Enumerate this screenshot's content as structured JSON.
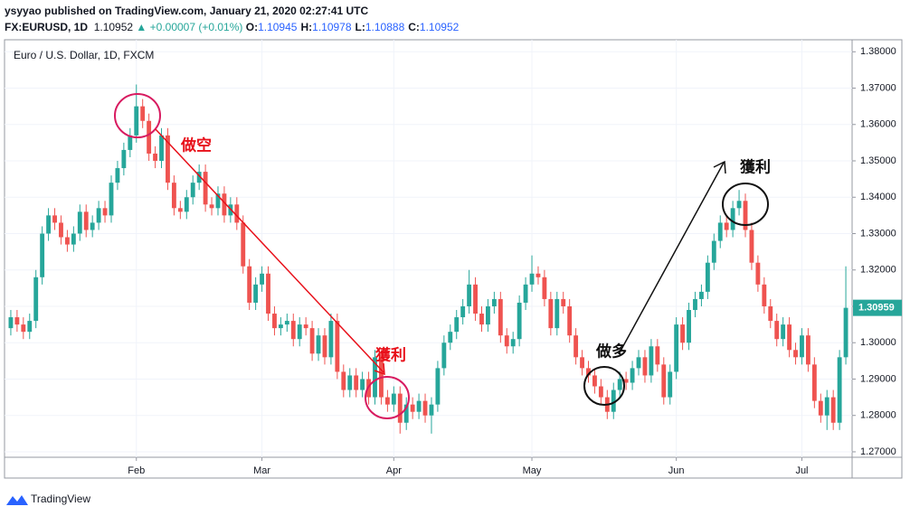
{
  "header": {
    "line1": "ysyyao published on TradingView.com, January 21, 2020 02:27:41 UTC",
    "symbol": "FX:EURUSD, 1D",
    "price": "1.10952",
    "change": "▲ +0.00007 (+0.01%)",
    "ohlc": [
      {
        "label": "O:",
        "value": "1.10945"
      },
      {
        "label": "H:",
        "value": "1.10978"
      },
      {
        "label": "L:",
        "value": "1.10888"
      },
      {
        "label": "C:",
        "value": "1.10952"
      }
    ]
  },
  "footer": {
    "brand": "TradingView"
  },
  "annotations": [
    {
      "text": "做空",
      "color": "#e8101a"
    },
    {
      "text": "獲利",
      "color": "#e8101a"
    },
    {
      "text": "做多",
      "color": "#111111"
    },
    {
      "text": "獲利",
      "color": "#111111"
    }
  ],
  "chart_data": {
    "type": "candlestick",
    "title": "Euro / U.S. Dollar, 1D, FXCM",
    "up_color": "#26a69a",
    "down_color": "#ef5350",
    "grid": true,
    "ylim": [
      1.2685,
      1.3833
    ],
    "yticks": [
      {
        "value": 1.27,
        "label": "1.27000"
      },
      {
        "value": 1.28,
        "label": "1.28000"
      },
      {
        "value": 1.29,
        "label": "1.29000"
      },
      {
        "value": 1.3,
        "label": "1.30000"
      },
      {
        "value": 1.31,
        "label": "1.31000"
      },
      {
        "value": 1.32,
        "label": "1.32000"
      },
      {
        "value": 1.33,
        "label": "1.33000"
      },
      {
        "value": 1.34,
        "label": "1.34000"
      },
      {
        "value": 1.35,
        "label": "1.35000"
      },
      {
        "value": 1.36,
        "label": "1.36000"
      },
      {
        "value": 1.37,
        "label": "1.37000"
      },
      {
        "value": 1.38,
        "label": "1.38000"
      }
    ],
    "xlim": [
      -1,
      134
    ],
    "xticks": [
      {
        "value": 20,
        "label": "Feb"
      },
      {
        "value": 40,
        "label": "Mar"
      },
      {
        "value": 61,
        "label": "Apr"
      },
      {
        "value": 83,
        "label": "May"
      },
      {
        "value": 106,
        "label": "Jun"
      },
      {
        "value": 126,
        "label": "Jul"
      }
    ],
    "open": [
      1.304,
      1.307,
      1.305,
      1.303,
      1.306,
      1.318,
      1.33,
      1.335,
      1.333,
      1.329,
      1.327,
      1.33,
      1.336,
      1.331,
      1.333,
      1.337,
      1.335,
      1.344,
      1.348,
      1.353,
      1.357,
      1.365,
      1.361,
      1.352,
      1.35,
      1.357,
      1.344,
      1.337,
      1.336,
      1.34,
      1.344,
      1.347,
      1.338,
      1.337,
      1.341,
      1.335,
      1.338,
      1.333,
      1.321,
      1.311,
      1.316,
      1.319,
      1.308,
      1.304,
      1.305,
      1.306,
      1.301,
      1.305,
      1.304,
      1.297,
      1.302,
      1.296,
      1.306,
      1.292,
      1.287,
      1.291,
      1.287,
      1.29,
      1.285,
      1.296,
      1.285,
      1.283,
      1.286,
      1.278,
      1.283,
      1.281,
      1.284,
      1.28,
      1.283,
      1.293,
      1.3,
      1.303,
      1.307,
      1.31,
      1.316,
      1.308,
      1.305,
      1.31,
      1.312,
      1.302,
      1.299,
      1.301,
      1.311,
      1.316,
      1.319,
      1.318,
      1.312,
      1.304,
      1.312,
      1.31,
      1.302,
      1.296,
      1.293,
      1.291,
      1.288,
      1.285,
      1.281,
      1.287,
      1.29,
      1.289,
      1.293,
      1.296,
      1.291,
      1.299,
      1.294,
      1.285,
      1.292,
      1.305,
      1.3,
      1.309,
      1.312,
      1.314,
      1.322,
      1.328,
      1.333,
      1.331,
      1.337,
      1.339,
      1.331,
      1.322,
      1.316,
      1.31,
      1.306,
      1.301,
      1.305,
      1.298,
      1.296,
      1.302,
      1.294,
      1.284,
      1.28,
      1.285,
      1.278,
      1.296
    ],
    "high": [
      1.309,
      1.309,
      1.307,
      1.308,
      1.32,
      1.332,
      1.337,
      1.337,
      1.335,
      1.331,
      1.332,
      1.338,
      1.338,
      1.335,
      1.339,
      1.339,
      1.346,
      1.35,
      1.355,
      1.359,
      1.371,
      1.367,
      1.363,
      1.354,
      1.359,
      1.359,
      1.346,
      1.339,
      1.342,
      1.346,
      1.349,
      1.349,
      1.34,
      1.343,
      1.343,
      1.34,
      1.34,
      1.335,
      1.323,
      1.318,
      1.321,
      1.321,
      1.31,
      1.307,
      1.308,
      1.308,
      1.307,
      1.307,
      1.306,
      1.304,
      1.304,
      1.308,
      1.308,
      1.294,
      1.293,
      1.293,
      1.292,
      1.292,
      1.298,
      1.298,
      1.287,
      1.288,
      1.288,
      1.285,
      1.285,
      1.286,
      1.286,
      1.285,
      1.295,
      1.302,
      1.305,
      1.309,
      1.312,
      1.32,
      1.318,
      1.31,
      1.312,
      1.314,
      1.314,
      1.304,
      1.303,
      1.313,
      1.318,
      1.324,
      1.321,
      1.32,
      1.314,
      1.314,
      1.314,
      1.312,
      1.304,
      1.298,
      1.295,
      1.293,
      1.29,
      1.287,
      1.289,
      1.292,
      1.292,
      1.295,
      1.298,
      1.298,
      1.301,
      1.301,
      1.296,
      1.294,
      1.307,
      1.307,
      1.311,
      1.314,
      1.316,
      1.324,
      1.33,
      1.335,
      1.335,
      1.339,
      1.342,
      1.341,
      1.333,
      1.324,
      1.318,
      1.312,
      1.308,
      1.307,
      1.307,
      1.3,
      1.304,
      1.304,
      1.296,
      1.286,
      1.287,
      1.287,
      1.298,
      1.321
    ],
    "low": [
      1.302,
      1.303,
      1.301,
      1.301,
      1.304,
      1.316,
      1.328,
      1.331,
      1.327,
      1.325,
      1.325,
      1.328,
      1.329,
      1.329,
      1.331,
      1.333,
      1.333,
      1.342,
      1.346,
      1.351,
      1.355,
      1.359,
      1.35,
      1.348,
      1.348,
      1.342,
      1.335,
      1.334,
      1.334,
      1.338,
      1.342,
      1.336,
      1.335,
      1.335,
      1.333,
      1.333,
      1.331,
      1.319,
      1.309,
      1.309,
      1.314,
      1.306,
      1.302,
      1.302,
      1.303,
      1.299,
      1.299,
      1.302,
      1.295,
      1.295,
      1.294,
      1.294,
      1.29,
      1.285,
      1.285,
      1.285,
      1.285,
      1.283,
      1.283,
      1.283,
      1.281,
      1.281,
      1.275,
      1.276,
      1.279,
      1.279,
      1.278,
      1.275,
      1.281,
      1.291,
      1.298,
      1.301,
      1.305,
      1.308,
      1.306,
      1.303,
      1.303,
      1.308,
      1.3,
      1.297,
      1.297,
      1.299,
      1.309,
      1.314,
      1.316,
      1.31,
      1.302,
      1.302,
      1.308,
      1.3,
      1.294,
      1.291,
      1.289,
      1.286,
      1.283,
      1.279,
      1.279,
      1.285,
      1.287,
      1.287,
      1.291,
      1.289,
      1.289,
      1.292,
      1.283,
      1.283,
      1.29,
      1.298,
      1.298,
      1.307,
      1.31,
      1.312,
      1.32,
      1.326,
      1.329,
      1.329,
      1.335,
      1.329,
      1.32,
      1.314,
      1.308,
      1.304,
      1.299,
      1.299,
      1.296,
      1.294,
      1.294,
      1.292,
      1.282,
      1.278,
      1.276,
      1.276,
      1.276,
      1.294
    ],
    "close": [
      1.307,
      1.305,
      1.303,
      1.306,
      1.318,
      1.33,
      1.335,
      1.333,
      1.329,
      1.327,
      1.33,
      1.336,
      1.331,
      1.333,
      1.337,
      1.335,
      1.344,
      1.348,
      1.353,
      1.357,
      1.365,
      1.361,
      1.352,
      1.35,
      1.357,
      1.344,
      1.337,
      1.336,
      1.34,
      1.344,
      1.347,
      1.338,
      1.337,
      1.341,
      1.335,
      1.338,
      1.333,
      1.321,
      1.311,
      1.316,
      1.319,
      1.308,
      1.304,
      1.305,
      1.306,
      1.301,
      1.305,
      1.304,
      1.297,
      1.302,
      1.296,
      1.306,
      1.292,
      1.287,
      1.291,
      1.287,
      1.29,
      1.285,
      1.296,
      1.285,
      1.283,
      1.286,
      1.278,
      1.283,
      1.281,
      1.284,
      1.28,
      1.283,
      1.293,
      1.3,
      1.303,
      1.307,
      1.31,
      1.316,
      1.308,
      1.305,
      1.31,
      1.312,
      1.302,
      1.299,
      1.301,
      1.311,
      1.316,
      1.319,
      1.318,
      1.312,
      1.304,
      1.312,
      1.31,
      1.302,
      1.296,
      1.293,
      1.291,
      1.288,
      1.285,
      1.281,
      1.287,
      1.29,
      1.289,
      1.293,
      1.296,
      1.291,
      1.299,
      1.294,
      1.285,
      1.292,
      1.305,
      1.3,
      1.309,
      1.312,
      1.314,
      1.322,
      1.328,
      1.333,
      1.331,
      1.337,
      1.339,
      1.331,
      1.322,
      1.316,
      1.31,
      1.306,
      1.301,
      1.305,
      1.298,
      1.296,
      1.302,
      1.294,
      1.284,
      1.28,
      1.285,
      1.278,
      1.296,
      1.30959
    ]
  }
}
